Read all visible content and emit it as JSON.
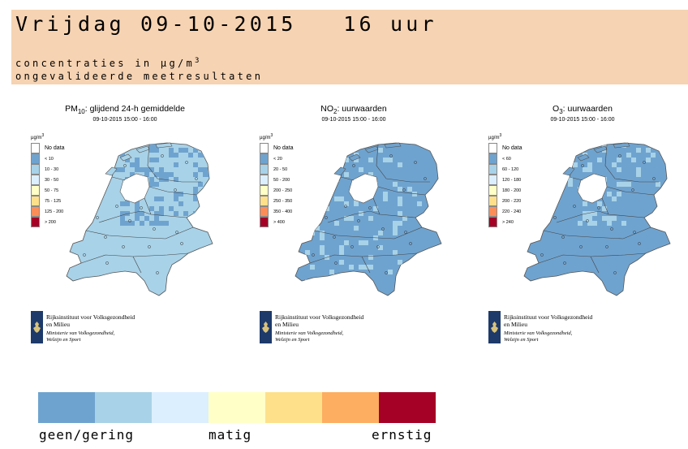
{
  "header": {
    "date_line": "Vrijdag 09-10-2015   16 uur",
    "units_prefix": "concentraties in µg/m",
    "units_exp": "3",
    "validation_note": "ongevalideerde meetresultaten"
  },
  "panels": [
    {
      "pollutant": "PM",
      "pollutant_sub": "10",
      "title_rest": ": glijdend 24-h gemiddelde",
      "time_range": "09-10-2015 15:00 - 16:00",
      "unit_base": "µg/m",
      "unit_exp": "3",
      "legend": [
        {
          "label": "No data",
          "color": "#ffffff"
        },
        {
          "label": "< 10",
          "color": "#6fa3cf"
        },
        {
          "label": "10 - 30",
          "color": "#a8d2e8"
        },
        {
          "label": "30 - 50",
          "color": "#dcefff"
        },
        {
          "label": "50 - 75",
          "color": "#ffffc8"
        },
        {
          "label": "75 - 125",
          "color": "#fee08b"
        },
        {
          "label": "125 - 200",
          "color": "#fc8d59"
        },
        {
          "label": "> 200",
          "color": "#a50026"
        }
      ],
      "map_fill": "#a8d2e8",
      "map_patch": "#6fa3cf"
    },
    {
      "pollutant": "NO",
      "pollutant_sub": "2",
      "title_rest": ": uurwaarden",
      "time_range": "09-10-2015 15:00 - 16:00",
      "unit_base": "µg/m",
      "unit_exp": "3",
      "legend": [
        {
          "label": "No data",
          "color": "#ffffff"
        },
        {
          "label": "< 20",
          "color": "#6fa3cf"
        },
        {
          "label": "20 - 50",
          "color": "#a8d2e8"
        },
        {
          "label": "50 - 200",
          "color": "#dcefff"
        },
        {
          "label": "200 - 250",
          "color": "#ffffc8"
        },
        {
          "label": "250 - 350",
          "color": "#fee08b"
        },
        {
          "label": "350 - 400",
          "color": "#fc8d59"
        },
        {
          "label": "> 400",
          "color": "#a50026"
        }
      ],
      "map_fill": "#6fa3cf",
      "map_patch": "#a8d2e8"
    },
    {
      "pollutant": "O",
      "pollutant_sub": "3",
      "title_rest": ": uurwaarden",
      "time_range": "09-10-2015 15:00 - 16:00",
      "unit_base": "µg/m",
      "unit_exp": "3",
      "legend": [
        {
          "label": "No data",
          "color": "#ffffff"
        },
        {
          "label": "< 60",
          "color": "#6fa3cf"
        },
        {
          "label": "60 - 120",
          "color": "#a8d2e8"
        },
        {
          "label": "120 - 180",
          "color": "#dcefff"
        },
        {
          "label": "180 - 200",
          "color": "#ffffc8"
        },
        {
          "label": "200 - 220",
          "color": "#fee08b"
        },
        {
          "label": "220 - 240",
          "color": "#fc8d59"
        },
        {
          "label": "> 240",
          "color": "#a50026"
        }
      ],
      "map_fill": "#6fa3cf",
      "map_patch": "#a8d2e8"
    }
  ],
  "rivm": {
    "name_line1": "Rijksinstituut voor Volksgezondheid",
    "name_line2": "en Milieu",
    "ministry_line1": "Ministerie van Volksgezondheid,",
    "ministry_line2": "Welzijn en Sport"
  },
  "scale": {
    "colors": [
      "#6fa3cf",
      "#a8d2e8",
      "#dcefff",
      "#ffffc8",
      "#fee08b",
      "#fdae61",
      "#a50026"
    ],
    "label_low": "geen/gering",
    "label_mid": "matig",
    "label_high": "ernstig"
  }
}
